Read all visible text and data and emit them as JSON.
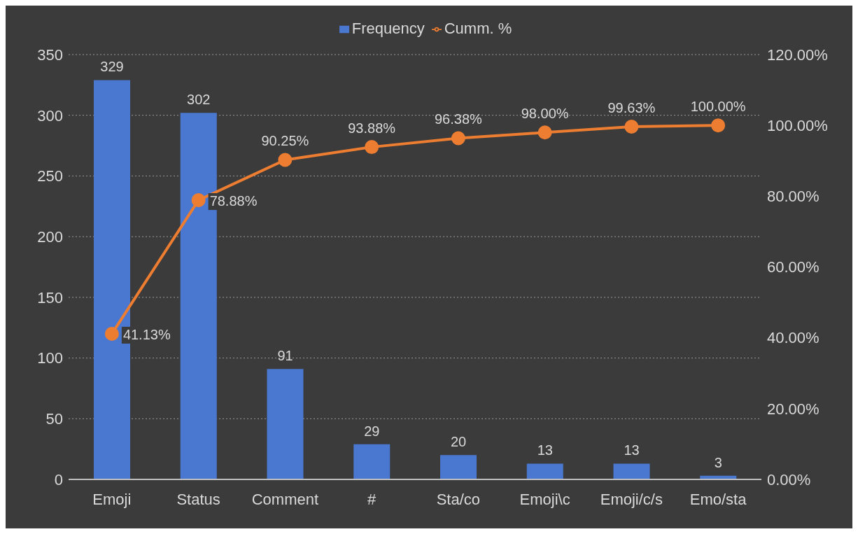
{
  "chart_data": {
    "type": "bar",
    "categories": [
      "Emoji",
      "Status",
      "Comment",
      "#",
      "Sta/co",
      "Emoji\\c",
      "Emoji/c/s",
      "Emo/sta"
    ],
    "series": [
      {
        "name": "Frequency",
        "color": "#4a78d0",
        "values": [
          329,
          302,
          91,
          29,
          20,
          13,
          13,
          3
        ],
        "value_labels": [
          "329",
          "302",
          "91",
          "29",
          "20",
          "13",
          "13",
          "3"
        ]
      },
      {
        "name": "Cumm. %",
        "type": "line",
        "axis": "y2",
        "color": "#ed7d31",
        "values": [
          41.13,
          78.88,
          90.25,
          93.88,
          96.38,
          98.0,
          99.63,
          100.0
        ],
        "value_labels": [
          "41.13%",
          "78.88%",
          "90.25%",
          "93.88%",
          "96.38%",
          "98.00%",
          "99.63%",
          "100.00%"
        ]
      }
    ],
    "ylim": [
      0,
      350
    ],
    "yticks": [
      0,
      50,
      100,
      150,
      200,
      250,
      300,
      350
    ],
    "y2lim": [
      0,
      120
    ],
    "y2ticks": [
      {
        "value": 0,
        "label": "0.00%"
      },
      {
        "value": 20,
        "label": "20.00%"
      },
      {
        "value": 40,
        "label": "40.00%"
      },
      {
        "value": 60,
        "label": "60.00%"
      },
      {
        "value": 80,
        "label": "80.00%"
      },
      {
        "value": 100,
        "label": "100.00%"
      },
      {
        "value": 120,
        "label": "120.00%"
      }
    ],
    "grid": "y",
    "legend": "top",
    "marker": "circle"
  }
}
